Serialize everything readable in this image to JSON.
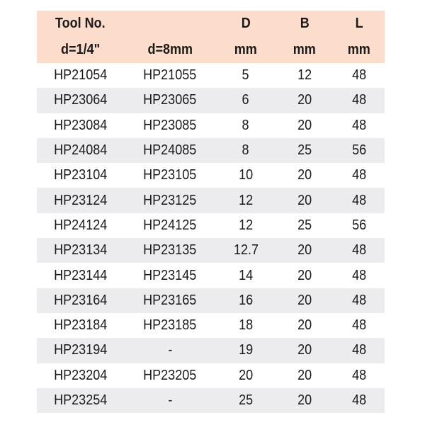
{
  "header": {
    "row1": [
      "Tool No.",
      "",
      "D",
      "B",
      "L"
    ],
    "row2": [
      "d=1/4\"",
      "d=8mm",
      "mm",
      "mm",
      "mm"
    ]
  },
  "colors": {
    "header_bg": "#fcdcca",
    "stripe_bg": "#ececee"
  },
  "rows": [
    [
      "HP21054",
      "HP21055",
      "5",
      "12",
      "48"
    ],
    [
      "HP23064",
      "HP23065",
      "6",
      "20",
      "48"
    ],
    [
      "HP23084",
      "HP23085",
      "8",
      "20",
      "48"
    ],
    [
      "HP24084",
      "HP24085",
      "8",
      "25",
      "56"
    ],
    [
      "HP23104",
      "HP23105",
      "10",
      "20",
      "48"
    ],
    [
      "HP23124",
      "HP23125",
      "12",
      "20",
      "48"
    ],
    [
      "HP24124",
      "HP24125",
      "12",
      "25",
      "56"
    ],
    [
      "HP23134",
      "HP23135",
      "12.7",
      "20",
      "48"
    ],
    [
      "HP23144",
      "HP23145",
      "14",
      "20",
      "48"
    ],
    [
      "HP23164",
      "HP23165",
      "16",
      "20",
      "48"
    ],
    [
      "HP23184",
      "HP23185",
      "18",
      "20",
      "48"
    ],
    [
      "HP23194",
      "-",
      "19",
      "20",
      "48"
    ],
    [
      "HP23204",
      "HP23205",
      "20",
      "20",
      "48"
    ],
    [
      "HP23254",
      "-",
      "25",
      "20",
      "48"
    ]
  ]
}
